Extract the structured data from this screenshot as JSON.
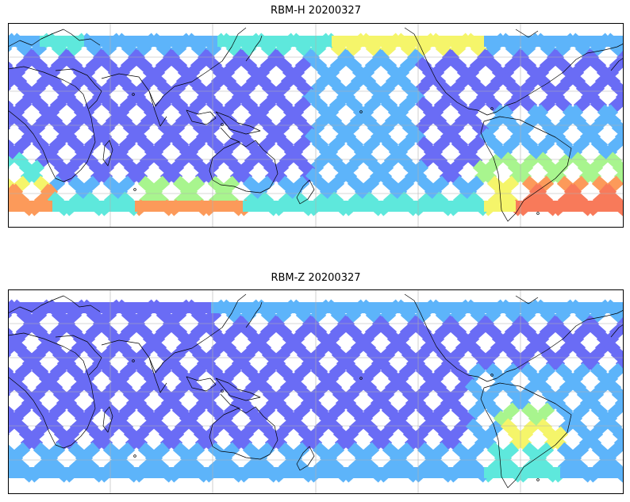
{
  "panels": [
    {
      "id": "top",
      "title": "RBM-H 20200327",
      "scale_mode": "H"
    },
    {
      "id": "bottom",
      "title": "RBM-Z 20200327",
      "scale_mode": "Z"
    }
  ],
  "colors": {
    "low": "#6a6cf5",
    "mid_low": "#5db4fa",
    "mid": "#5ee8dc",
    "mid_high": "#a8f58e",
    "high": "#f5f56a",
    "very_high": "#fc9a5a",
    "extreme": "#f87a5a",
    "coast": "#000000",
    "grid": "#b0b0b0",
    "frame": "#000000"
  },
  "map": {
    "projection": "equirectangular",
    "central_longitude_deg": 180,
    "lat_range": [
      -90,
      90
    ],
    "lon_range": [
      0,
      360
    ],
    "gridlines": true
  },
  "icons": [
    "coastline-outline",
    "gridline"
  ]
}
